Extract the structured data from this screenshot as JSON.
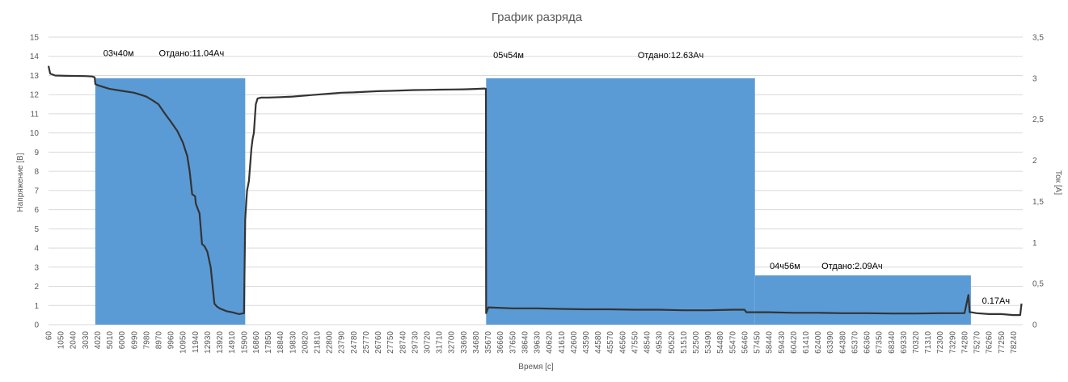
{
  "chart_data": {
    "type": "line",
    "title": "График разряда",
    "xlabel": "Время [с]",
    "ylabel": "Напряжение [В]",
    "y2label": "Ток [А]",
    "ylim": [
      0,
      15
    ],
    "y2lim": [
      0,
      3.5
    ],
    "xlim": [
      60,
      79000
    ],
    "grid": true,
    "legend": "none",
    "colors": {
      "voltage": "#333333",
      "current": "#5b9bd5",
      "grid": "#d9d9d9"
    },
    "y_ticks": [
      "0",
      "1",
      "2",
      "3",
      "4",
      "5",
      "6",
      "7",
      "8",
      "9",
      "10",
      "11",
      "12",
      "13",
      "14",
      "15"
    ],
    "y2_ticks": [
      "0",
      "0,5",
      "1",
      "1,5",
      "2",
      "2,5",
      "3",
      "3,5"
    ],
    "x_ticks": [
      "60",
      "1050",
      "2040",
      "3030",
      "4020",
      "5010",
      "6000",
      "6990",
      "7980",
      "8970",
      "9960",
      "10950",
      "11940",
      "12930",
      "13920",
      "14910",
      "15900",
      "16860",
      "17850",
      "18840",
      "19830",
      "20820",
      "21810",
      "22800",
      "23790",
      "24780",
      "25770",
      "26760",
      "27750",
      "28740",
      "29730",
      "30720",
      "31710",
      "32700",
      "33690",
      "34680",
      "35670",
      "36660",
      "37650",
      "38640",
      "39630",
      "40620",
      "41610",
      "42600",
      "43590",
      "44580",
      "45570",
      "46560",
      "47550",
      "48540",
      "49530",
      "50520",
      "51510",
      "52500",
      "53490",
      "54480",
      "55470",
      "56460",
      "57450",
      "58440",
      "59430",
      "60420",
      "61410",
      "62400",
      "63390",
      "64380",
      "65370",
      "66360",
      "67350",
      "68340",
      "69330",
      "70320",
      "71310",
      "72300",
      "73290",
      "74280",
      "75270",
      "76260",
      "77250",
      "78240"
    ],
    "x_tick_labels": [
      "60",
      "1050",
      "2040",
      "3030",
      "4020",
      "5010",
      "6000",
      "6990",
      "7980",
      "8970",
      "9960",
      "10950",
      "11940",
      "12930",
      "13920",
      "14910",
      "15900",
      "16860",
      "17850",
      "18840",
      "19830",
      "20820",
      "21810",
      "22800",
      "23790",
      "24780",
      "25770",
      "26760",
      "27750",
      "28740",
      "29730",
      "30720",
      "31710",
      "32700",
      "33690",
      "34680",
      "35670",
      "36660",
      "37650",
      "38640",
      "39630",
      "40620",
      "41610",
      "42600",
      "43590",
      "44580",
      "45570",
      "46560",
      "47550",
      "48540",
      "49530",
      "50520",
      "51510",
      "52500",
      "53490",
      "54480",
      "55470",
      "56460",
      "57450",
      "58440",
      "59430",
      "60420",
      "61410",
      "62400",
      "63390",
      "64380",
      "65370",
      "66360",
      "67350",
      "68340",
      "69330",
      "70320",
      "71310",
      "72300",
      "73290",
      "74280",
      "75270",
      "76260",
      "77250",
      "78240"
    ],
    "series": [
      {
        "name": "",
        "axis": "primary",
        "x": [
          60,
          200,
          600,
          1500,
          3030,
          3600,
          3800,
          3850,
          4020,
          4500,
          5010,
          6000,
          6990,
          7500,
          7980,
          8500,
          8970,
          9500,
          9960,
          10500,
          10950,
          11300,
          11500,
          11700,
          11940,
          12000,
          12300,
          12500,
          12700,
          12930,
          13200,
          13500,
          13700,
          13920,
          14500,
          14910,
          15500,
          15900,
          16000,
          16100,
          16150,
          16300,
          16500,
          16600,
          16700,
          16860,
          17000,
          17300,
          17600,
          17850,
          18840,
          19830,
          20820,
          21810,
          22800,
          23790,
          24780,
          25770,
          26760,
          27750,
          28740,
          29730,
          30720,
          31710,
          32700,
          33690,
          34680,
          35400,
          35500,
          35520,
          35700,
          37650,
          39630,
          41610,
          43590,
          45570,
          47550,
          49530,
          51510,
          53490,
          55470,
          56460,
          56600,
          58440,
          60420,
          62400,
          64380,
          66360,
          68340,
          70320,
          72300,
          74280,
          74600,
          74700,
          74800,
          75270,
          76260,
          77250,
          78240,
          78800,
          78900
        ],
        "y": [
          13.5,
          13.1,
          13.0,
          12.98,
          12.97,
          12.95,
          12.9,
          12.55,
          12.5,
          12.4,
          12.3,
          12.2,
          12.1,
          12.0,
          11.9,
          11.7,
          11.5,
          11.0,
          10.6,
          10.1,
          9.5,
          8.8,
          8.0,
          6.8,
          6.7,
          6.3,
          5.8,
          4.2,
          4.1,
          3.8,
          3.0,
          1.1,
          0.95,
          0.85,
          0.7,
          0.65,
          0.55,
          0.6,
          5.5,
          6.5,
          7.0,
          7.5,
          9.2,
          9.7,
          10.0,
          11.5,
          11.8,
          11.85,
          11.85,
          11.85,
          11.87,
          11.9,
          11.95,
          12.0,
          12.05,
          12.1,
          12.12,
          12.15,
          12.18,
          12.2,
          12.22,
          12.24,
          12.25,
          12.26,
          12.27,
          12.28,
          12.3,
          12.32,
          12.3,
          0.6,
          0.9,
          0.85,
          0.85,
          0.82,
          0.8,
          0.8,
          0.78,
          0.78,
          0.75,
          0.75,
          0.78,
          0.78,
          0.65,
          0.65,
          0.62,
          0.62,
          0.6,
          0.6,
          0.58,
          0.58,
          0.6,
          0.6,
          1.55,
          0.65,
          0.65,
          0.6,
          0.55,
          0.55,
          0.5,
          0.5,
          1.1
        ]
      },
      {
        "name": "",
        "axis": "secondary",
        "type": "bar",
        "segments": [
          {
            "x0": 3850,
            "x1": 16000,
            "value": 3.0
          },
          {
            "x0": 35520,
            "x1": 57300,
            "value": 3.0
          },
          {
            "x0": 57300,
            "x1": 74800,
            "value": 0.6
          }
        ]
      }
    ],
    "annotations": [
      {
        "text": "03ч40м",
        "x": 4500,
        "y": 14.0
      },
      {
        "text": "Отдано:11.04Ач",
        "x": 9000,
        "y": 14.0
      },
      {
        "text": "05ч54м",
        "x": 36100,
        "y": 13.9
      },
      {
        "text": "Отдано:12.63Ач",
        "x": 47800,
        "y": 13.9
      },
      {
        "text": "04ч56м",
        "x": 58500,
        "y": 2.9
      },
      {
        "text": "Отдано:2.09Ач",
        "x": 62700,
        "y": 2.9
      },
      {
        "text": "0.17Ач",
        "x": 75700,
        "y": 1.1
      }
    ]
  }
}
